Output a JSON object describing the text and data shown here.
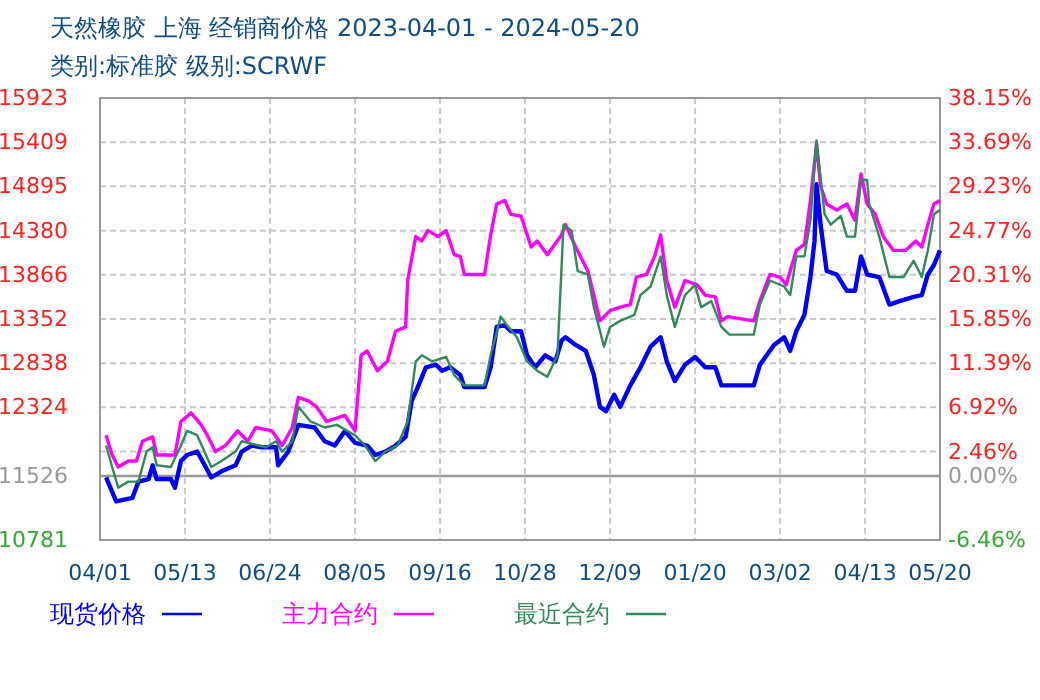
{
  "chart_data": {
    "type": "line",
    "title": "天然橡胶 上海 经销商价格 2023-04-01 - 2024-05-20",
    "subtitle": "类别:标准胶 级别:SCRWF",
    "xlim": [
      "2023-04-01",
      "2024-05-20"
    ],
    "xticks": [
      {
        "value": "2023-04-01",
        "label": "04/01"
      },
      {
        "value": "2023-05-13",
        "label": "05/13"
      },
      {
        "value": "2023-06-24",
        "label": "06/24"
      },
      {
        "value": "2023-08-05",
        "label": "08/05"
      },
      {
        "value": "2023-09-16",
        "label": "09/16"
      },
      {
        "value": "2023-10-28",
        "label": "10/28"
      },
      {
        "value": "2023-12-09",
        "label": "12/09"
      },
      {
        "value": "2024-01-20",
        "label": "01/20"
      },
      {
        "value": "2024-03-02",
        "label": "03/02"
      },
      {
        "value": "2024-04-13",
        "label": "04/13"
      },
      {
        "value": "2024-05-20",
        "label": "05/20"
      }
    ],
    "ylim": [
      10781,
      15923
    ],
    "yticks": [
      15923,
      15409,
      14895,
      14380,
      13866,
      13352,
      12838,
      12324,
      {
        "value": 11810,
        "label": null
      },
      11526,
      10781
    ],
    "y2lim": [
      -6.46,
      38.15
    ],
    "y2ticks": [
      {
        "value": 38.15,
        "label": "38.15%"
      },
      {
        "value": 33.69,
        "label": "33.69%"
      },
      {
        "value": 29.23,
        "label": "29.23%"
      },
      {
        "value": 24.77,
        "label": "24.77%"
      },
      {
        "value": 20.31,
        "label": "20.31%"
      },
      {
        "value": 15.85,
        "label": "15.85%"
      },
      {
        "value": 11.39,
        "label": "11.39%"
      },
      {
        "value": 6.92,
        "label": "6.92%"
      },
      {
        "value": 2.46,
        "label": "2.46%"
      },
      {
        "value": 0,
        "label": "0.00%"
      },
      {
        "value": -6.46,
        "label": "-6.46%"
      }
    ],
    "ref_lines": [
      {
        "axis": "y",
        "value": 11526,
        "color": "#999999"
      }
    ],
    "grid": true,
    "legend": "bottom",
    "line_style": "solid",
    "marker": "none",
    "series": [
      {
        "name": "现货价格",
        "color": "#0000ff",
        "x": [
          "2023-04-04",
          "2023-04-09",
          "2023-04-17",
          "2023-04-20",
          "2023-04-25",
          "2023-04-27",
          "2023-04-29",
          "2023-05-06",
          "2023-05-08",
          "2023-05-11",
          "2023-05-14",
          "2023-05-19",
          "2023-05-26",
          "2023-05-31",
          "2023-06-07",
          "2023-06-10",
          "2023-06-15",
          "2023-06-20",
          "2023-06-27",
          "2023-06-28",
          "2023-07-03",
          "2023-07-08",
          "2023-07-16",
          "2023-07-21",
          "2023-07-26",
          "2023-07-31",
          "2023-08-05",
          "2023-08-11",
          "2023-08-15",
          "2023-08-20",
          "2023-08-25",
          "2023-08-30",
          "2023-09-02",
          "2023-09-05",
          "2023-09-09",
          "2023-09-14",
          "2023-09-17",
          "2023-09-21",
          "2023-09-26",
          "2023-09-28",
          "2023-10-08",
          "2023-10-11",
          "2023-10-14",
          "2023-10-18",
          "2023-10-21",
          "2023-10-26",
          "2023-10-29",
          "2023-11-02",
          "2023-11-07",
          "2023-11-12",
          "2023-11-15",
          "2023-11-17",
          "2023-11-22",
          "2023-11-27",
          "2023-12-01",
          "2023-12-04",
          "2023-12-07",
          "2023-12-11",
          "2023-12-14",
          "2023-12-19",
          "2023-12-24",
          "2023-12-29",
          "2024-01-03",
          "2024-01-06",
          "2024-01-10",
          "2024-01-15",
          "2024-01-20",
          "2024-01-25",
          "2024-01-30",
          "2024-02-02",
          "2024-02-18",
          "2024-02-21",
          "2024-02-28",
          "2024-03-04",
          "2024-03-07",
          "2024-03-10",
          "2024-03-14",
          "2024-03-17",
          "2024-03-19",
          "2024-03-20",
          "2024-03-22",
          "2024-03-25",
          "2024-03-30",
          "2024-04-04",
          "2024-04-08",
          "2024-04-11",
          "2024-04-14",
          "2024-04-20",
          "2024-04-25",
          "2024-04-30",
          "2024-05-07",
          "2024-05-11",
          "2024-05-14",
          "2024-05-17",
          "2024-05-20"
        ],
        "values": [
          11510,
          11230,
          11270,
          11460,
          11490,
          11650,
          11490,
          11490,
          11390,
          11700,
          11770,
          11810,
          11510,
          11580,
          11650,
          11810,
          11880,
          11860,
          11860,
          11650,
          11810,
          12120,
          12090,
          11930,
          11880,
          12050,
          11910,
          11880,
          11770,
          11810,
          11880,
          11980,
          12400,
          12560,
          12790,
          12820,
          12750,
          12790,
          12700,
          12560,
          12560,
          12790,
          13260,
          13280,
          13210,
          13210,
          12930,
          12790,
          12930,
          12860,
          13100,
          13140,
          13050,
          12980,
          12700,
          12330,
          12280,
          12470,
          12330,
          12580,
          12790,
          13030,
          13140,
          12860,
          12630,
          12820,
          12910,
          12790,
          12790,
          12580,
          12580,
          12820,
          13050,
          13140,
          12980,
          13210,
          13400,
          13840,
          14260,
          14920,
          14450,
          13910,
          13870,
          13680,
          13680,
          14080,
          13870,
          13840,
          13520,
          13560,
          13610,
          13630,
          13870,
          13980,
          14150
        ]
      },
      {
        "name": "主力合约",
        "color": "#ff00ff",
        "x": [
          "2023-04-04",
          "2023-04-07",
          "2023-04-10",
          "2023-04-15",
          "2023-04-19",
          "2023-04-22",
          "2023-04-27",
          "2023-04-29",
          "2023-05-08",
          "2023-05-11",
          "2023-05-16",
          "2023-05-21",
          "2023-05-24",
          "2023-05-28",
          "2023-06-02",
          "2023-06-08",
          "2023-06-13",
          "2023-06-17",
          "2023-06-25",
          "2023-06-30",
          "2023-07-05",
          "2023-07-08",
          "2023-07-13",
          "2023-07-17",
          "2023-07-22",
          "2023-07-31",
          "2023-08-05",
          "2023-08-08",
          "2023-08-11",
          "2023-08-16",
          "2023-08-21",
          "2023-08-25",
          "2023-08-30",
          "2023-08-31",
          "2023-09-04",
          "2023-09-07",
          "2023-09-10",
          "2023-09-15",
          "2023-09-19",
          "2023-09-23",
          "2023-09-26",
          "2023-09-28",
          "2023-10-08",
          "2023-10-11",
          "2023-10-14",
          "2023-10-18",
          "2023-10-21",
          "2023-10-26",
          "2023-10-31",
          "2023-11-03",
          "2023-11-08",
          "2023-11-15",
          "2023-11-17",
          "2023-11-22",
          "2023-11-28",
          "2023-12-01",
          "2023-12-04",
          "2023-12-09",
          "2023-12-14",
          "2023-12-19",
          "2023-12-22",
          "2023-12-27",
          "2023-12-31",
          "2024-01-03",
          "2024-01-06",
          "2024-01-10",
          "2024-01-15",
          "2024-01-21",
          "2024-01-25",
          "2024-01-30",
          "2024-02-02",
          "2024-02-05",
          "2024-02-18",
          "2024-02-21",
          "2024-02-26",
          "2024-03-02",
          "2024-03-05",
          "2024-03-10",
          "2024-03-14",
          "2024-03-17",
          "2024-03-20",
          "2024-03-22",
          "2024-03-25",
          "2024-03-30",
          "2024-04-04",
          "2024-04-08",
          "2024-04-11",
          "2024-04-14",
          "2024-04-18",
          "2024-04-22",
          "2024-04-27",
          "2024-05-03",
          "2024-05-08",
          "2024-05-11",
          "2024-05-14",
          "2024-05-17",
          "2024-05-20"
        ],
        "values": [
          12000,
          11770,
          11630,
          11700,
          11700,
          11930,
          11980,
          11770,
          11770,
          12160,
          12260,
          12120,
          12000,
          11810,
          11880,
          12050,
          11930,
          12090,
          12050,
          11880,
          12090,
          12440,
          12400,
          12330,
          12160,
          12230,
          12050,
          12930,
          12980,
          12750,
          12860,
          13210,
          13260,
          13800,
          14310,
          14260,
          14380,
          14310,
          14380,
          14100,
          14080,
          13870,
          13870,
          14330,
          14690,
          14730,
          14570,
          14550,
          14190,
          14260,
          14100,
          14330,
          14450,
          14190,
          13910,
          13630,
          13330,
          13450,
          13490,
          13520,
          13840,
          13870,
          14080,
          14330,
          13800,
          13490,
          13800,
          13750,
          13630,
          13610,
          13330,
          13380,
          13330,
          13560,
          13870,
          13840,
          13750,
          14150,
          14220,
          14730,
          15390,
          14900,
          14690,
          14620,
          14690,
          14500,
          15040,
          14690,
          14570,
          14310,
          14150,
          14150,
          14260,
          14190,
          14450,
          14690,
          14730
        ]
      },
      {
        "name": "最近合约",
        "color": "#2e8b57",
        "x": [
          "2023-04-04",
          "2023-04-07",
          "2023-04-10",
          "2023-04-15",
          "2023-04-20",
          "2023-04-24",
          "2023-04-27",
          "2023-04-29",
          "2023-05-06",
          "2023-05-11",
          "2023-05-14",
          "2023-05-19",
          "2023-05-26",
          "2023-05-31",
          "2023-06-07",
          "2023-06-10",
          "2023-06-22",
          "2023-06-27",
          "2023-06-30",
          "2023-07-05",
          "2023-07-08",
          "2023-07-14",
          "2023-07-21",
          "2023-07-27",
          "2023-08-05",
          "2023-08-10",
          "2023-08-15",
          "2023-08-20",
          "2023-08-26",
          "2023-08-31",
          "2023-09-04",
          "2023-09-07",
          "2023-09-12",
          "2023-09-19",
          "2023-09-23",
          "2023-09-28",
          "2023-10-08",
          "2023-10-11",
          "2023-10-16",
          "2023-10-19",
          "2023-10-24",
          "2023-10-29",
          "2023-11-03",
          "2023-11-08",
          "2023-11-13",
          "2023-11-16",
          "2023-11-20",
          "2023-11-23",
          "2023-11-28",
          "2023-12-01",
          "2023-12-06",
          "2023-12-09",
          "2023-12-14",
          "2023-12-21",
          "2023-12-24",
          "2023-12-29",
          "2024-01-03",
          "2024-01-06",
          "2024-01-10",
          "2024-01-15",
          "2024-01-20",
          "2024-01-23",
          "2024-01-28",
          "2024-02-02",
          "2024-02-06",
          "2024-02-18",
          "2024-02-21",
          "2024-02-26",
          "2024-03-04",
          "2024-03-07",
          "2024-03-10",
          "2024-03-14",
          "2024-03-17",
          "2024-03-20",
          "2024-03-24",
          "2024-03-27",
          "2024-04-01",
          "2024-04-04",
          "2024-04-08",
          "2024-04-11",
          "2024-04-14",
          "2024-04-15",
          "2024-04-20",
          "2024-04-25",
          "2024-05-02",
          "2024-05-07",
          "2024-05-11",
          "2024-05-14",
          "2024-05-17",
          "2024-05-20"
        ],
        "values": [
          11880,
          11630,
          11390,
          11460,
          11460,
          11810,
          11860,
          11650,
          11630,
          11880,
          12050,
          12000,
          11630,
          11700,
          11810,
          11930,
          11860,
          11930,
          11810,
          11930,
          12330,
          12160,
          12090,
          12120,
          12000,
          11880,
          11700,
          11810,
          11880,
          12160,
          12860,
          12930,
          12860,
          12910,
          12700,
          12580,
          12580,
          12930,
          13380,
          13280,
          13140,
          12860,
          12750,
          12680,
          12930,
          14450,
          14380,
          13910,
          13870,
          13490,
          13030,
          13260,
          13330,
          13400,
          13630,
          13730,
          14080,
          13630,
          13260,
          13630,
          13750,
          13490,
          13560,
          13260,
          13170,
          13170,
          13520,
          13800,
          13730,
          13630,
          14080,
          14080,
          14500,
          15430,
          14570,
          14450,
          14550,
          14310,
          14310,
          14970,
          14970,
          14690,
          14310,
          13840,
          13840,
          14030,
          13840,
          14150,
          14570,
          14620
        ]
      }
    ]
  }
}
